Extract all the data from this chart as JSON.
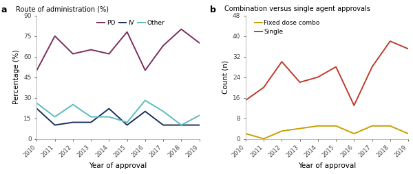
{
  "years": [
    2010,
    2011,
    2012,
    2013,
    2014,
    2015,
    2016,
    2017,
    2018,
    2019
  ],
  "PO": [
    50,
    75,
    62,
    65,
    62,
    78,
    50,
    68,
    80,
    70
  ],
  "IV": [
    22,
    10,
    12,
    12,
    22,
    10,
    20,
    10,
    10,
    10
  ],
  "Other": [
    26,
    16,
    25,
    16,
    16,
    12,
    28,
    20,
    10,
    17
  ],
  "fixed_dose_combo": [
    2,
    0,
    3,
    4,
    5,
    5,
    2,
    5,
    5,
    2
  ],
  "single": [
    15,
    20,
    30,
    22,
    24,
    28,
    13,
    28,
    38,
    35
  ],
  "PO_color": "#7b2d5e",
  "IV_color": "#1a2e5e",
  "Other_color": "#5bbcbf",
  "combo_color": "#c8a000",
  "single_color": "#c0392b",
  "panel_a_title": "Route of administration (%)",
  "panel_b_title": "Combination versus single agent approvals",
  "xlabel": "Year of approval",
  "ylabel_a": "Percentage (%)",
  "ylabel_b": "Count (n)",
  "ylim_a": [
    0,
    90
  ],
  "ylim_b": [
    0,
    48
  ],
  "yticks_a": [
    0,
    15,
    30,
    45,
    60,
    75,
    90
  ],
  "yticks_b": [
    0,
    8,
    16,
    24,
    32,
    40,
    48
  ],
  "bg_color": "#ffffff"
}
